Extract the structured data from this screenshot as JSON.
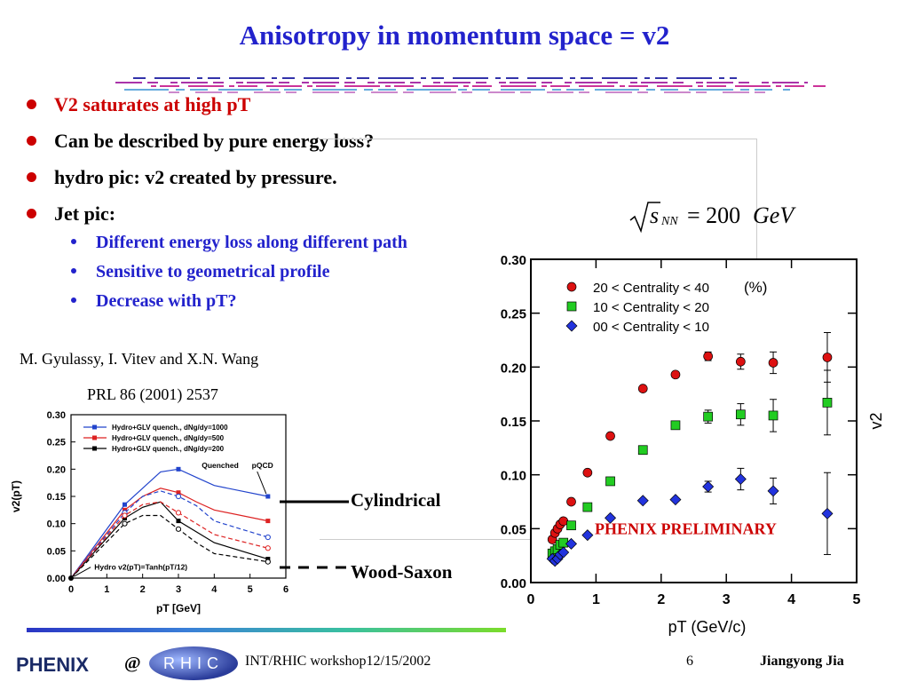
{
  "slide": {
    "title": "Anisotropy in momentum space = v2",
    "bullets": [
      {
        "text": "V2 saturates at high pT",
        "color": "#cc0000"
      },
      {
        "text": "Can be described by pure energy loss?",
        "color": "#000000"
      },
      {
        "text": "hydro pic:  v2 created by pressure.",
        "color": "#000000"
      },
      {
        "text": "Jet pic:",
        "color": "#000000"
      }
    ],
    "sub_bullets": [
      "Different energy loss along different path",
      "Sensitive to geometrical profile",
      "Decrease with pT?"
    ],
    "citation_authors": "M. Gyulassy, I. Vitev and X.N. Wang",
    "citation_ref": "PRL 86 (2001) 2537",
    "label_cylindrical": "Cylindrical",
    "label_woodsaxon": "Wood-Saxon",
    "formula_value": "= 200",
    "formula_unit": "GeV",
    "footer": {
      "workshop": "INT/RHIC workshop12/15/2002",
      "page": "6",
      "author": "Jiangyong Jia",
      "at": "@",
      "phenix_logo": "PHENIX",
      "rhic_logo": "RHIC"
    }
  },
  "chart_data": [
    {
      "type": "line",
      "x": [
        0,
        1.5,
        2,
        2.5,
        3,
        3.5,
        4,
        5.5
      ],
      "xlabel": "pT   [GeV]",
      "ylabel": "v2(pT)",
      "xlim": [
        0,
        6
      ],
      "ylim": [
        0,
        0.3
      ],
      "xticks": [
        "0",
        "1",
        "2",
        "3",
        "4",
        "5",
        "6"
      ],
      "yticks": [
        "0.00",
        "0.05",
        "0.10",
        "0.15",
        "0.20",
        "0.25",
        "0.30"
      ],
      "series": [
        {
          "name": "Hydro+GLV  quench.,  dNg/dy=1000",
          "color": "#2244cc",
          "style": "solid",
          "values": [
            0,
            0.135,
            0.165,
            0.195,
            0.2,
            0.185,
            0.17,
            0.15
          ]
        },
        {
          "name": "Hydro+GLV  quench.,  dNg/dy=500",
          "color": "#dd2222",
          "style": "solid",
          "values": [
            0,
            0.125,
            0.15,
            0.165,
            0.157,
            0.14,
            0.125,
            0.105
          ]
        },
        {
          "name": "Hydro+GLV  quench.,  dNg/dy=200",
          "color": "#000000",
          "style": "solid",
          "values": [
            0,
            0.11,
            0.13,
            0.14,
            0.105,
            0.085,
            0.065,
            0.035
          ]
        },
        {
          "name": "",
          "color": "#2244cc",
          "style": "dashed",
          "values": [
            0,
            0.12,
            0.15,
            0.16,
            0.15,
            0.133,
            0.105,
            0.075
          ]
        },
        {
          "name": "",
          "color": "#dd2222",
          "style": "dashed",
          "values": [
            0,
            0.115,
            0.135,
            0.14,
            0.12,
            0.1,
            0.08,
            0.055
          ]
        },
        {
          "name": "",
          "color": "#000000",
          "style": "dashed",
          "values": [
            0,
            0.1,
            0.115,
            0.115,
            0.09,
            0.065,
            0.045,
            0.03
          ]
        }
      ],
      "annotations": [
        "Quenched",
        "pQCD",
        "Hydro v2(pT)=Tanh(pT/12)"
      ]
    },
    {
      "type": "scatter",
      "xlabel": "pT (GeV/c)",
      "ylabel": "v2",
      "xlim": [
        0,
        5
      ],
      "ylim": [
        0,
        0.3
      ],
      "xticks": [
        "0",
        "1",
        "2",
        "3",
        "4",
        "5"
      ],
      "yticks": [
        "0.00",
        "0.05",
        "0.10",
        "0.15",
        "0.20",
        "0.25",
        "0.30"
      ],
      "legend_unit": "(%)",
      "annotation": "PHENIX PRELIMINARY",
      "series": [
        {
          "name": "20 < Centrality <  40",
          "color": "#dd1111",
          "marker": "circle",
          "x": [
            0.33,
            0.37,
            0.41,
            0.45,
            0.5,
            0.62,
            0.87,
            1.22,
            1.72,
            2.22,
            2.72,
            3.22,
            3.72,
            4.55
          ],
          "y": [
            0.04,
            0.046,
            0.05,
            0.054,
            0.057,
            0.075,
            0.102,
            0.136,
            0.18,
            0.193,
            0.21,
            0.205,
            0.204,
            0.209
          ],
          "err": [
            0,
            0,
            0,
            0,
            0,
            0,
            0,
            0,
            0,
            0,
            0.004,
            0.007,
            0.01,
            0.023
          ]
        },
        {
          "name": "10 < Centrality <  20",
          "color": "#22cc22",
          "marker": "square",
          "x": [
            0.33,
            0.37,
            0.41,
            0.45,
            0.5,
            0.62,
            0.87,
            1.22,
            1.72,
            2.22,
            2.72,
            3.22,
            3.72,
            4.55
          ],
          "y": [
            0.027,
            0.029,
            0.031,
            0.035,
            0.037,
            0.053,
            0.07,
            0.094,
            0.123,
            0.146,
            0.154,
            0.156,
            0.155,
            0.167
          ],
          "err": [
            0,
            0,
            0,
            0,
            0,
            0,
            0,
            0,
            0,
            0,
            0.006,
            0.01,
            0.015,
            0.03
          ]
        },
        {
          "name": "00 <  Centrality < 10",
          "color": "#2233dd",
          "marker": "diamond",
          "x": [
            0.33,
            0.37,
            0.41,
            0.45,
            0.5,
            0.62,
            0.87,
            1.22,
            1.72,
            2.22,
            2.72,
            3.22,
            3.72,
            4.55
          ],
          "y": [
            0.022,
            0.02,
            0.022,
            0.026,
            0.028,
            0.036,
            0.044,
            0.06,
            0.076,
            0.077,
            0.089,
            0.096,
            0.085,
            0.064
          ],
          "err": [
            0,
            0,
            0,
            0,
            0,
            0,
            0,
            0,
            0,
            0,
            0.005,
            0.01,
            0.012,
            0.038
          ]
        }
      ]
    }
  ]
}
